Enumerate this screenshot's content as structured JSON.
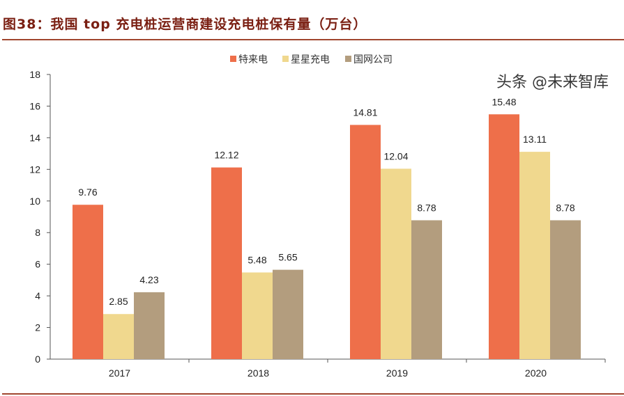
{
  "title": "图38：我国 top 充电桩运营商建设充电桩保有量（万台）",
  "watermark": "头条 @未来智库",
  "chart_data": {
    "type": "bar",
    "categories": [
      "2017",
      "2018",
      "2019",
      "2020"
    ],
    "series": [
      {
        "name": "特来电",
        "color": "#ee6f4a",
        "values": [
          9.76,
          12.12,
          14.81,
          15.48
        ]
      },
      {
        "name": "星星充电",
        "color": "#f0d88e",
        "values": [
          2.85,
          5.48,
          12.04,
          13.11
        ]
      },
      {
        "name": "国网公司",
        "color": "#b39d7e",
        "values": [
          4.23,
          5.65,
          8.78,
          8.78
        ]
      }
    ],
    "ylim": [
      0,
      18
    ],
    "yticks": [
      0,
      2,
      4,
      6,
      8,
      10,
      12,
      14,
      16,
      18
    ],
    "legend": "top",
    "grid": false
  }
}
